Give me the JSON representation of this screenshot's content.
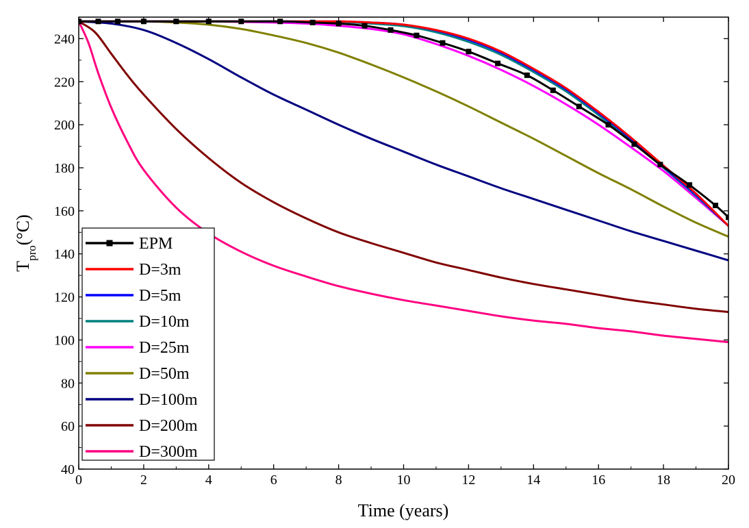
{
  "chart_data": {
    "type": "line",
    "xlabel": "Time (years)",
    "ylabel": {
      "main": "T",
      "sub": "pro",
      "unit": "(°C)"
    },
    "xlim": [
      0,
      20
    ],
    "ylim": [
      40,
      250
    ],
    "xticks": [
      0,
      2,
      4,
      6,
      8,
      10,
      12,
      14,
      16,
      18,
      20
    ],
    "yticks": [
      40,
      60,
      80,
      100,
      120,
      140,
      160,
      180,
      200,
      220,
      240
    ],
    "grid": false,
    "legend_position": "bottom-left",
    "series": [
      {
        "name": "EPM",
        "color": "#000000",
        "marker": "square",
        "x": [
          0,
          0.6,
          1.2,
          2,
          3,
          4,
          5,
          6.2,
          7.2,
          8,
          8.8,
          9.6,
          10.4,
          11.2,
          12,
          12.9,
          13.8,
          14.6,
          15.4,
          16.3,
          17.1,
          17.9,
          18.8,
          19.6,
          20
        ],
        "y": [
          248,
          248,
          248,
          248,
          248,
          248,
          248,
          248,
          247.5,
          247,
          246,
          244,
          241.5,
          238,
          234,
          228.5,
          223,
          216,
          208.5,
          200,
          191,
          181.5,
          172,
          162.5,
          157
        ]
      },
      {
        "name": "D=3m",
        "color": "#ff0000",
        "x": [
          0,
          2,
          4,
          6,
          8,
          9,
          10,
          11,
          12,
          13,
          14,
          15,
          16,
          17,
          18,
          19,
          20
        ],
        "y": [
          248,
          248,
          248,
          248,
          248,
          247.5,
          246.5,
          244,
          240,
          234,
          226,
          217,
          206,
          194,
          181,
          168,
          153
        ]
      },
      {
        "name": "D=5m",
        "color": "#0000ff",
        "x": [
          0,
          2,
          4,
          6,
          8,
          9,
          10,
          11,
          12,
          13,
          14,
          15,
          16,
          17,
          18,
          19,
          20
        ],
        "y": [
          248,
          248,
          248,
          248,
          248,
          247.5,
          246.5,
          243.8,
          239.5,
          233.5,
          225.5,
          216.5,
          205.5,
          193.5,
          180.5,
          167.5,
          153
        ]
      },
      {
        "name": "D=10m",
        "color": "#008080",
        "x": [
          0,
          2,
          4,
          6,
          8,
          9,
          10,
          11,
          12,
          13,
          14,
          15,
          16,
          17,
          18,
          19,
          20
        ],
        "y": [
          248,
          248,
          248,
          248,
          247.8,
          247,
          245.8,
          243,
          238.5,
          232.5,
          224.5,
          215.5,
          204.5,
          192.5,
          180,
          167,
          153
        ]
      },
      {
        "name": "D=25m",
        "color": "#ff00ff",
        "x": [
          0,
          2,
          4,
          6,
          7,
          8,
          9,
          10,
          11,
          12,
          13,
          14,
          15,
          16,
          17,
          18,
          19,
          20
        ],
        "y": [
          248,
          248,
          248,
          247.5,
          247,
          246,
          244.5,
          242,
          237.5,
          232,
          225.5,
          218,
          209.5,
          200,
          189.5,
          178.5,
          166,
          153
        ]
      },
      {
        "name": "D=50m",
        "color": "#808000",
        "x": [
          0,
          1,
          2,
          3,
          4,
          5,
          6,
          7,
          8,
          9,
          10,
          11,
          12,
          13,
          14,
          15,
          16,
          17,
          18,
          19,
          20
        ],
        "y": [
          248,
          248,
          248,
          247.5,
          246.5,
          244.5,
          241.5,
          238,
          233.5,
          228,
          222,
          215.5,
          208.5,
          201,
          193.5,
          185.5,
          177.5,
          170,
          162,
          154.5,
          148
        ]
      },
      {
        "name": "D=100m",
        "color": "#000080",
        "x": [
          0,
          1,
          2,
          3,
          4,
          5,
          6,
          7,
          8,
          9,
          10,
          11,
          12,
          13,
          14,
          15,
          16,
          17,
          18,
          19,
          20
        ],
        "y": [
          248,
          247,
          244,
          238,
          230.5,
          222,
          214,
          207,
          200,
          193.5,
          187.5,
          181.5,
          176,
          170.5,
          165.5,
          160.5,
          155.5,
          150.5,
          146,
          141.5,
          137
        ]
      },
      {
        "name": "D=200m",
        "color": "#800000",
        "x": [
          0,
          0.5,
          1,
          1.5,
          2,
          3,
          4,
          5,
          6,
          7,
          8,
          9,
          10,
          11,
          12,
          13,
          14,
          15,
          16,
          17,
          18,
          19,
          20
        ],
        "y": [
          248,
          243,
          233,
          223,
          214,
          198,
          184.5,
          173,
          164,
          156.5,
          150,
          145,
          140.5,
          136,
          132.5,
          129,
          126,
          123.5,
          121,
          118.5,
          116.5,
          114.5,
          113
        ]
      },
      {
        "name": "D=300m",
        "color": "#ff0080",
        "x": [
          0,
          0.3,
          0.6,
          1,
          1.5,
          2,
          3,
          4,
          5,
          6,
          7,
          8,
          9,
          10,
          11,
          12,
          13,
          14,
          15,
          16,
          17,
          18,
          19,
          20
        ],
        "y": [
          248,
          238,
          224,
          208,
          192,
          179,
          161.5,
          149.5,
          141,
          134.5,
          129.5,
          125,
          121.5,
          118.5,
          116,
          113.5,
          111,
          109,
          107.5,
          105.5,
          104,
          102,
          100.5,
          99
        ]
      }
    ]
  }
}
